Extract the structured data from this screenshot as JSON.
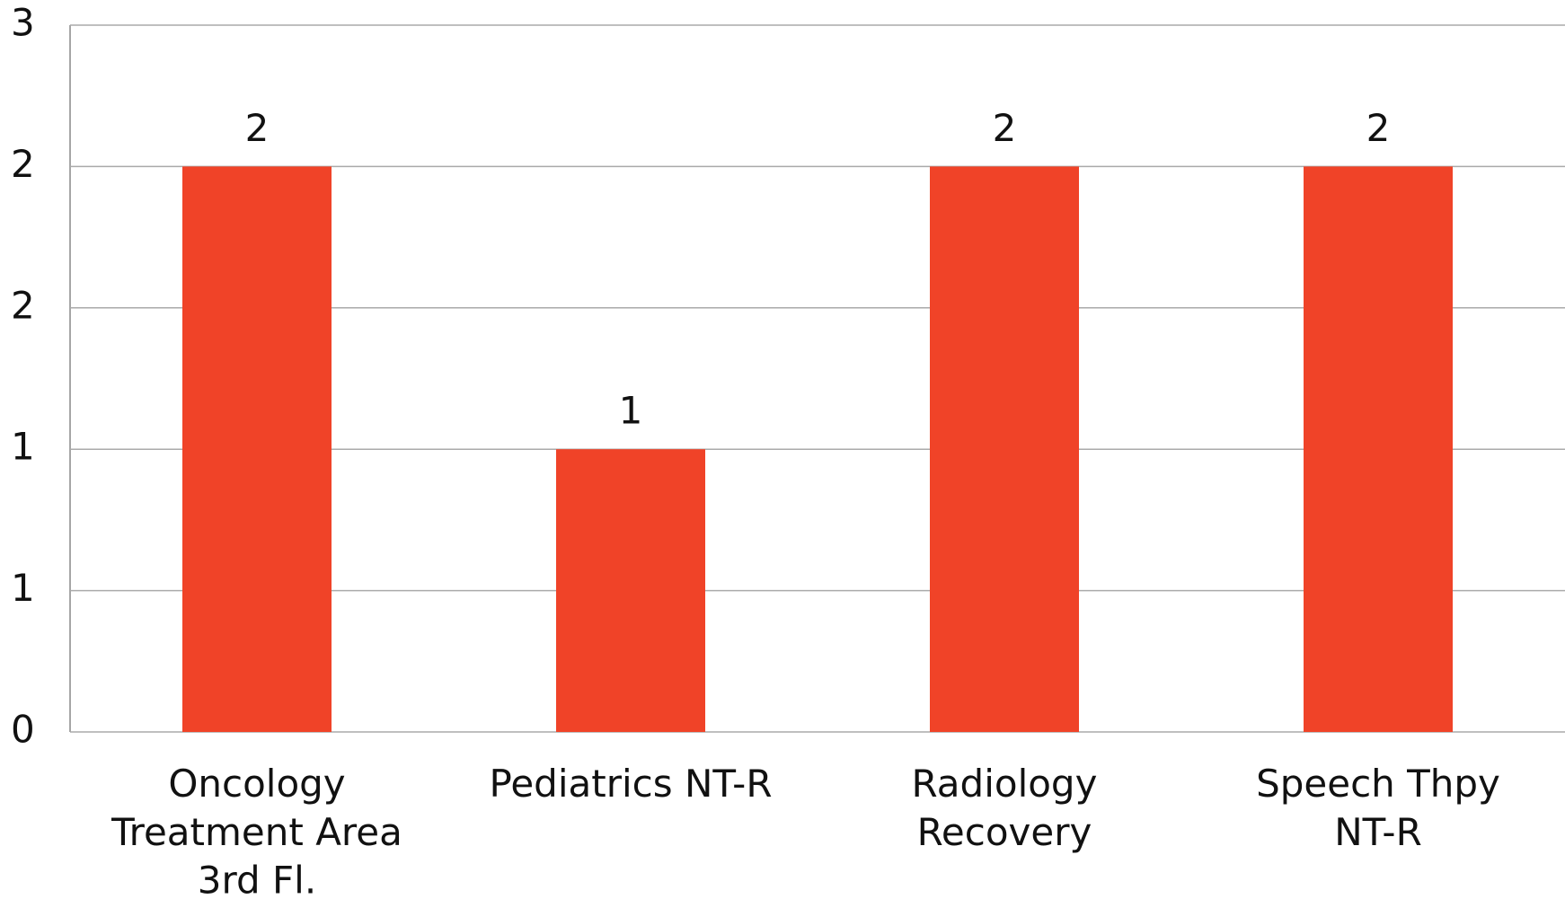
{
  "chart_data": {
    "type": "bar",
    "categories": [
      "Oncology Treatment Area 3rd Fl.",
      "Pediatrics NT-R",
      "Radiology Recovery",
      "Speech Thpy NT-R"
    ],
    "values": [
      2.4,
      1.2,
      2.4,
      2.4
    ],
    "value_labels": [
      "2",
      "1",
      "2",
      "2"
    ],
    "color": "#f04328",
    "ylim": [
      0,
      3
    ],
    "yticks": [
      0,
      {
        "value": 0.6,
        "label": "1"
      },
      {
        "value": 1.2,
        "label": "1"
      },
      {
        "value": 1.8,
        "label": "2"
      },
      {
        "value": 2.4,
        "label": "2"
      },
      3
    ],
    "grid": true
  }
}
